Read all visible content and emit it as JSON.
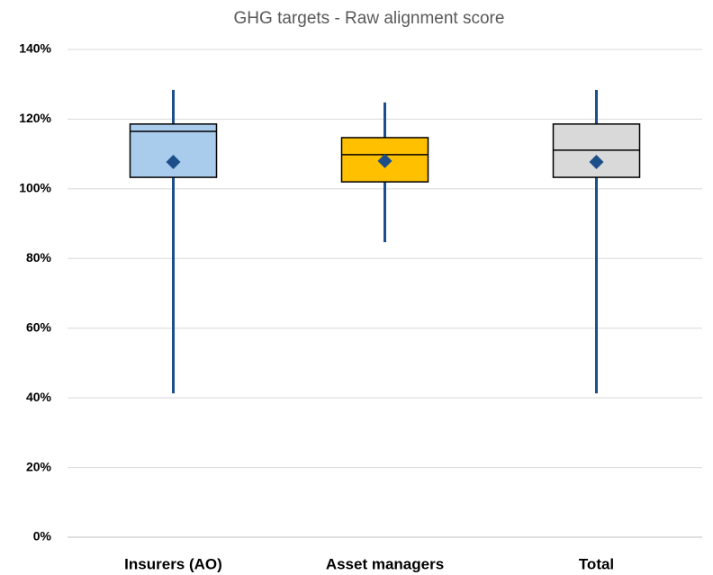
{
  "chart_data": {
    "type": "box",
    "title": "GHG targets - Raw alignment score",
    "categories": [
      "Insurers (AO)",
      "Asset managers",
      "Total"
    ],
    "min": [
      41.3,
      84.7,
      41.3
    ],
    "q1": [
      103.3,
      102.0,
      103.3
    ],
    "median": [
      116.5,
      109.8,
      111.1
    ],
    "q3": [
      118.6,
      114.7,
      118.6
    ],
    "max": [
      128.4,
      124.8,
      128.4
    ],
    "mean": [
      107.7,
      108.0,
      107.7
    ],
    "colors": [
      "#a9cbec",
      "#ffc000",
      "#d9d9d9"
    ],
    "whisker_color": "#1c4f8a",
    "mean_color": "#1c4f8a",
    "ylim": [
      0,
      140
    ],
    "yticks": [
      {
        "value": 0,
        "label": "0%"
      },
      {
        "value": 20,
        "label": "20%"
      },
      {
        "value": 40,
        "label": "40%"
      },
      {
        "value": 60,
        "label": "60%"
      },
      {
        "value": 80,
        "label": "80%"
      },
      {
        "value": 100,
        "label": "100%"
      },
      {
        "value": 120,
        "label": "120%"
      },
      {
        "value": 140,
        "label": "140%"
      }
    ],
    "grid": true
  }
}
